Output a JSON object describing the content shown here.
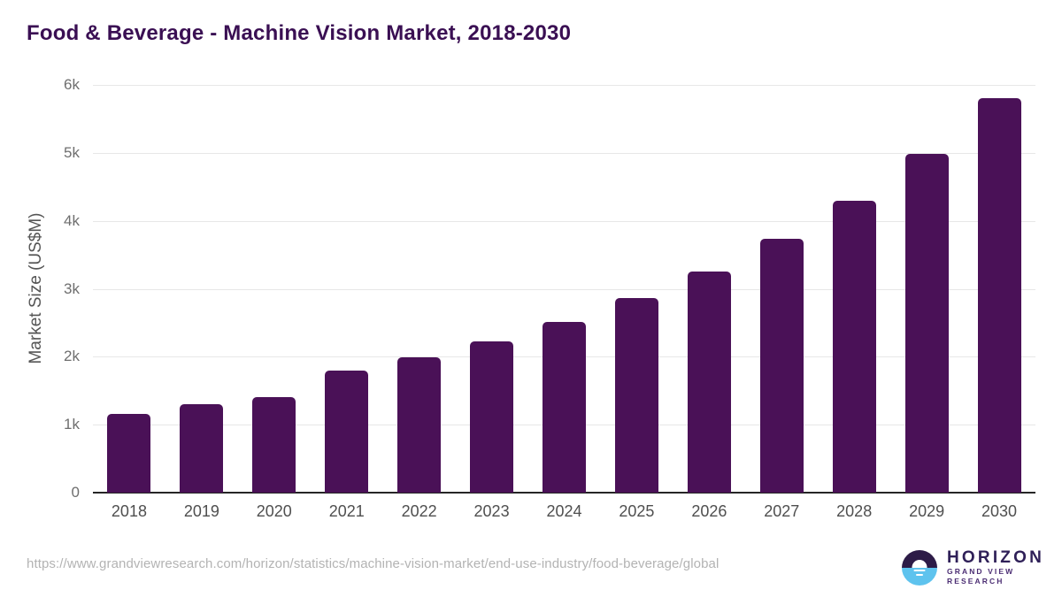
{
  "page_title": "Food & Beverage - Machine Vision Market, 2018-2030",
  "footer": {
    "source_url": "https://www.grandviewresearch.com/horizon/statistics/machine-vision-market/end-use-industry/food-beverage/global",
    "logo": {
      "brand": "HORIZON",
      "tagline": "GRAND VIEW RESEARCH"
    }
  },
  "colors": {
    "bar": "#4a1157",
    "title": "#3a0f53",
    "grid": "#e7e7e7",
    "axis_line": "#262626",
    "ytick_text": "#6e6e6e",
    "xtick_text": "#4f4f4f",
    "ylabel_text": "#555555",
    "url_text": "#b3b3b3",
    "logo_dark": "#2d1b47",
    "logo_blue": "#5ec3ee",
    "logo_text": "#2f2058",
    "logo_tagline": "#4b2d73"
  },
  "chart_data": {
    "type": "bar",
    "title": "Food & Beverage - Machine Vision Market, 2018-2030",
    "categories": [
      "2018",
      "2019",
      "2020",
      "2021",
      "2022",
      "2023",
      "2024",
      "2025",
      "2026",
      "2027",
      "2028",
      "2029",
      "2030"
    ],
    "values": [
      1160,
      1300,
      1410,
      1800,
      1990,
      2230,
      2510,
      2860,
      3250,
      3740,
      4300,
      4980,
      5800
    ],
    "xlabel": "",
    "ylabel": "Market Size (US$M)",
    "ylim": [
      0,
      6000
    ],
    "yticks": [
      0,
      1000,
      2000,
      3000,
      4000,
      5000,
      6000
    ],
    "ytick_labels": [
      "0",
      "1k",
      "2k",
      "3k",
      "4k",
      "5k",
      "6k"
    ],
    "grid": true,
    "legend_position": "none",
    "bar_unit": "US$M"
  }
}
